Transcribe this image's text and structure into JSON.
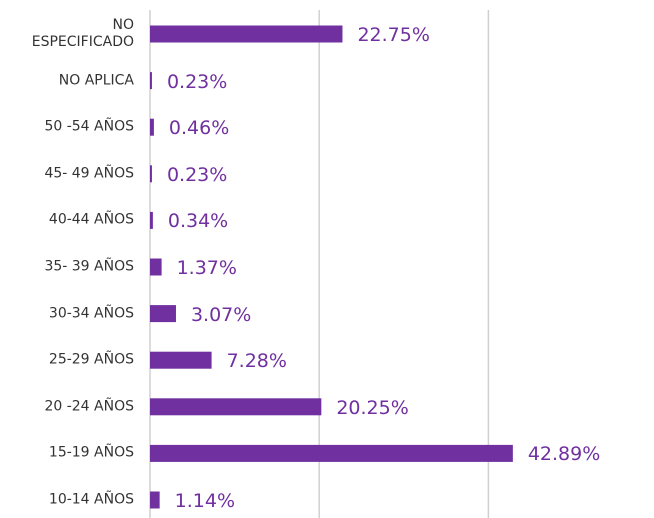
{
  "chart_data": {
    "type": "bar",
    "orientation": "horizontal",
    "categories": [
      "NO\nESPECIFICADO",
      "NO APLICA",
      "50 -54 AÑOS",
      "45- 49 AÑOS",
      "40-44 AÑOS",
      "35- 39 AÑOS",
      "30-34 AÑOS",
      "25-29 AÑOS",
      "20 -24 AÑOS",
      "15-19 AÑOS",
      "10-14 AÑOS"
    ],
    "values": [
      22.75,
      0.23,
      0.46,
      0.23,
      0.34,
      1.37,
      3.07,
      7.28,
      20.25,
      42.89,
      1.14
    ],
    "value_labels": [
      "22.75%",
      "0.23%",
      "0.46%",
      "0.23%",
      "0.34%",
      "1.37%",
      "3.07%",
      "7.28%",
      "20.25%",
      "42.89%",
      "1.14%"
    ],
    "color": "#7030a0",
    "xlim": [
      0,
      50
    ],
    "xticks": [
      0,
      20,
      40
    ],
    "grid": true
  }
}
